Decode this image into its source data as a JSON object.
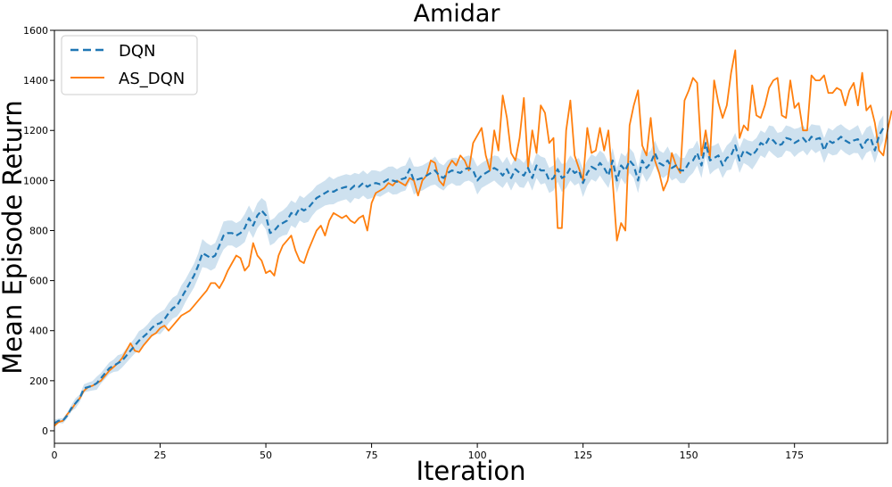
{
  "chart_data": {
    "type": "line",
    "title": "Amidar",
    "xlabel": "Iteration",
    "ylabel": "Mean Episode Return",
    "xlim": [
      0,
      197
    ],
    "ylim": [
      -50,
      1600
    ],
    "xticks": [
      0,
      25,
      50,
      75,
      100,
      125,
      150,
      175
    ],
    "yticks": [
      0,
      200,
      400,
      600,
      800,
      1000,
      1200,
      1400,
      1600
    ],
    "grid": false,
    "legend_position": "top-left",
    "series": [
      {
        "name": "DQN",
        "color": "#1f77b4",
        "style": "dashed",
        "band": "shaded",
        "x_start": 0,
        "values": [
          30,
          40,
          40,
          60,
          90,
          110,
          130,
          170,
          175,
          180,
          190,
          210,
          230,
          250,
          260,
          270,
          280,
          300,
          320,
          340,
          360,
          375,
          390,
          410,
          425,
          430,
          445,
          470,
          490,
          500,
          530,
          560,
          590,
          620,
          660,
          710,
          700,
          690,
          700,
          740,
          780,
          790,
          790,
          780,
          790,
          810,
          850,
          820,
          860,
          880,
          860,
          790,
          800,
          820,
          830,
          840,
          870,
          860,
          890,
          880,
          890,
          910,
          930,
          940,
          950,
          960,
          955,
          965,
          970,
          975,
          965,
          980,
          975,
          990,
          975,
          985,
          990,
          985,
          995,
          1005,
          1000,
          995,
          1005,
          1010,
          1045,
          1000,
          1005,
          1010,
          1020,
          1030,
          1040,
          1020,
          1010,
          1030,
          1040,
          1035,
          1030,
          1045,
          1050,
          1040,
          1000,
          1020,
          1030,
          1040,
          1050,
          1040,
          1020,
          1045,
          1010,
          1045,
          1030,
          1020,
          1050,
          1010,
          1060,
          1040,
          1040,
          1000,
          1010,
          1045,
          1010,
          1020,
          1050,
          1030,
          1040,
          990,
          1030,
          1055,
          1045,
          1070,
          1050,
          1020,
          1080,
          1000,
          1060,
          1040,
          1080,
          1060,
          1000,
          1080,
          1050,
          1070,
          1110,
          1070,
          1060,
          1080,
          1050,
          1060,
          1040,
          1040,
          1070,
          1080,
          1110,
          1060,
          1150,
          1080,
          1090,
          1100,
          1060,
          1090,
          1100,
          1140,
          1080,
          1120,
          1110,
          1100,
          1120,
          1150,
          1140,
          1170,
          1160,
          1140,
          1145,
          1170,
          1165,
          1150,
          1160,
          1170,
          1150,
          1175,
          1165,
          1170,
          1120,
          1160,
          1150,
          1160,
          1175,
          1160,
          1150,
          1160,
          1165,
          1130,
          1160,
          1170,
          1120,
          1180,
          1210
        ]
      },
      {
        "name": "AS_DQN",
        "color": "#ff7f0e",
        "style": "solid",
        "x_start": 0,
        "values": [
          20,
          35,
          40,
          65,
          85,
          110,
          130,
          160,
          175,
          180,
          190,
          200,
          220,
          240,
          255,
          270,
          290,
          320,
          350,
          320,
          315,
          340,
          360,
          380,
          390,
          410,
          420,
          400,
          420,
          440,
          460,
          470,
          480,
          500,
          520,
          540,
          560,
          590,
          590,
          570,
          600,
          640,
          670,
          700,
          690,
          640,
          660,
          750,
          700,
          680,
          630,
          640,
          620,
          700,
          740,
          760,
          780,
          720,
          680,
          670,
          720,
          760,
          800,
          820,
          780,
          840,
          870,
          860,
          850,
          860,
          840,
          830,
          850,
          860,
          800,
          910,
          950,
          960,
          970,
          990,
          980,
          1000,
          990,
          980,
          1010,
          1000,
          940,
          1000,
          1020,
          1080,
          1070,
          1000,
          980,
          1050,
          1080,
          1060,
          1100,
          1080,
          1040,
          1150,
          1180,
          1210,
          1100,
          1040,
          1200,
          1120,
          1340,
          1250,
          1110,
          1080,
          1170,
          1330,
          1050,
          1200,
          1110,
          1300,
          1270,
          1150,
          1170,
          810,
          810,
          1200,
          1320,
          1100,
          1050,
          1000,
          1210,
          1110,
          1120,
          1210,
          1120,
          1200,
          1000,
          760,
          830,
          800,
          1220,
          1300,
          1360,
          1140,
          1100,
          1250,
          1080,
          1030,
          960,
          1000,
          1110,
          1060,
          1030,
          1320,
          1360,
          1410,
          1390,
          1100,
          1200,
          1090,
          1400,
          1310,
          1250,
          1300,
          1430,
          1520,
          1170,
          1220,
          1200,
          1380,
          1260,
          1250,
          1300,
          1370,
          1400,
          1410,
          1260,
          1250,
          1400,
          1290,
          1310,
          1200,
          1200,
          1420,
          1400,
          1400,
          1420,
          1350,
          1350,
          1370,
          1360,
          1300,
          1360,
          1390,
          1300,
          1430,
          1280,
          1300,
          1230,
          1120,
          1100,
          1200,
          1280
        ]
      }
    ]
  }
}
